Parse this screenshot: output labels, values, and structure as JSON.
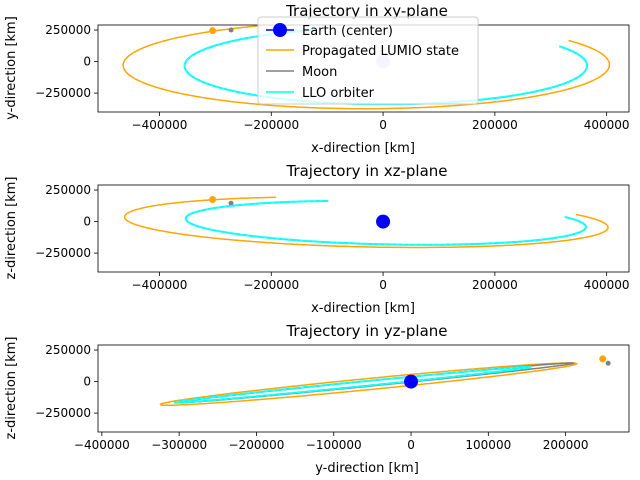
{
  "chart_data": [
    {
      "type": "line",
      "title": "Trajectory in xy-plane",
      "xlabel": "x-direction [km]",
      "ylabel": "y-direction [km]",
      "xlim": [
        -510000,
        440000
      ],
      "ylim": [
        -400000,
        290000
      ],
      "xticks": [
        -400000,
        -200000,
        0,
        200000,
        400000
      ],
      "yticks": [
        250000,
        0,
        -250000
      ],
      "series": [
        {
          "name": "Propagated LUMIO state",
          "color": "#ffa500",
          "kind": "ellipse",
          "cx": -30000,
          "cy": -27000,
          "rx": 435000,
          "ry": 347000,
          "tilt": 0.015,
          "start": 115,
          "end": 393,
          "endpoint": [
            -305000,
            245000
          ]
        },
        {
          "name": "Moon",
          "color": "#808080",
          "kind": "ellipse",
          "cx": 5000,
          "cy": -34000,
          "rx": 360000,
          "ry": 305000,
          "tilt": 0.01,
          "start": 110,
          "end": 385,
          "endpoint": [
            -272000,
            250000
          ]
        },
        {
          "name": "LLO orbiter",
          "color": "#00ffff",
          "kind": "ellipse",
          "cx": 5000,
          "cy": -34000,
          "rx": 360000,
          "ry": 305000,
          "tilt": 0.01,
          "start": 110,
          "end": 390,
          "endpoint": null
        }
      ],
      "earth": [
        0,
        0
      ],
      "legend": {
        "position": "top-center",
        "entries": [
          {
            "label": "Earth (center)",
            "color": "#0000ff",
            "marker": "circle"
          },
          {
            "label": "Propagated LUMIO state",
            "color": "#ffa500",
            "marker": "line"
          },
          {
            "label": "Moon",
            "color": "#808080",
            "marker": "line"
          },
          {
            "label": "LLO orbiter",
            "color": "#00ffff",
            "marker": "line"
          }
        ]
      }
    },
    {
      "type": "line",
      "title": "Trajectory in xz-plane",
      "xlabel": "x-direction [km]",
      "ylabel": "z-direction [km]",
      "xlim": [
        -510000,
        440000
      ],
      "ylim": [
        -400000,
        290000
      ],
      "xticks": [
        -400000,
        -200000,
        0,
        200000,
        400000
      ],
      "yticks": [
        250000,
        0,
        -250000
      ],
      "series": [
        {
          "name": "Propagated LUMIO state",
          "color": "#ffa500",
          "kind": "ellipse",
          "cx": -30000,
          "cy": -5000,
          "rx": 435000,
          "ry": 195000,
          "tilt": -0.12,
          "start": 115,
          "end": 393,
          "endpoint": [
            -305000,
            175000
          ]
        },
        {
          "name": "Moon",
          "color": "#808080",
          "kind": "ellipse",
          "cx": 5000,
          "cy": -10000,
          "rx": 360000,
          "ry": 170000,
          "tilt": -0.12,
          "start": 110,
          "end": 385,
          "endpoint": [
            -272000,
            145000
          ]
        },
        {
          "name": "LLO orbiter",
          "color": "#00ffff",
          "kind": "ellipse",
          "cx": 5000,
          "cy": -10000,
          "rx": 360000,
          "ry": 170000,
          "tilt": -0.12,
          "start": 110,
          "end": 390,
          "endpoint": null
        }
      ],
      "earth": [
        0,
        0
      ]
    },
    {
      "type": "line",
      "title": "Trajectory in yz-plane",
      "xlabel": "y-direction [km]",
      "ylabel": "z-direction [km]",
      "xlim": [
        -405000,
        282000
      ],
      "ylim": [
        -400000,
        290000
      ],
      "xticks": [
        -400000,
        -300000,
        -200000,
        -100000,
        0,
        100000,
        200000
      ],
      "yticks": [
        250000,
        0,
        -250000
      ],
      "series": [
        {
          "name": "Propagated LUMIO state",
          "color": "#ffa500",
          "kind": "ellipse",
          "cx": -55000,
          "cy": -20000,
          "rx": 315000,
          "ry": 38000,
          "tilt": 0.55,
          "start": 0,
          "end": 358,
          "endpoint": [
            248000,
            180000
          ]
        },
        {
          "name": "Moon",
          "color": "#808080",
          "kind": "ellipse",
          "cx": -45000,
          "cy": -10000,
          "rx": 300000,
          "ry": 18000,
          "tilt": 0.55,
          "start": 0,
          "end": 355,
          "endpoint": [
            255000,
            145000
          ]
        },
        {
          "name": "LLO orbiter",
          "color": "#00ffff",
          "kind": "ellipse",
          "cx": -75000,
          "cy": -25000,
          "rx": 270000,
          "ry": 16000,
          "tilt": 0.55,
          "start": 0,
          "end": 355,
          "endpoint": null
        }
      ],
      "earth": [
        0,
        0
      ]
    }
  ]
}
